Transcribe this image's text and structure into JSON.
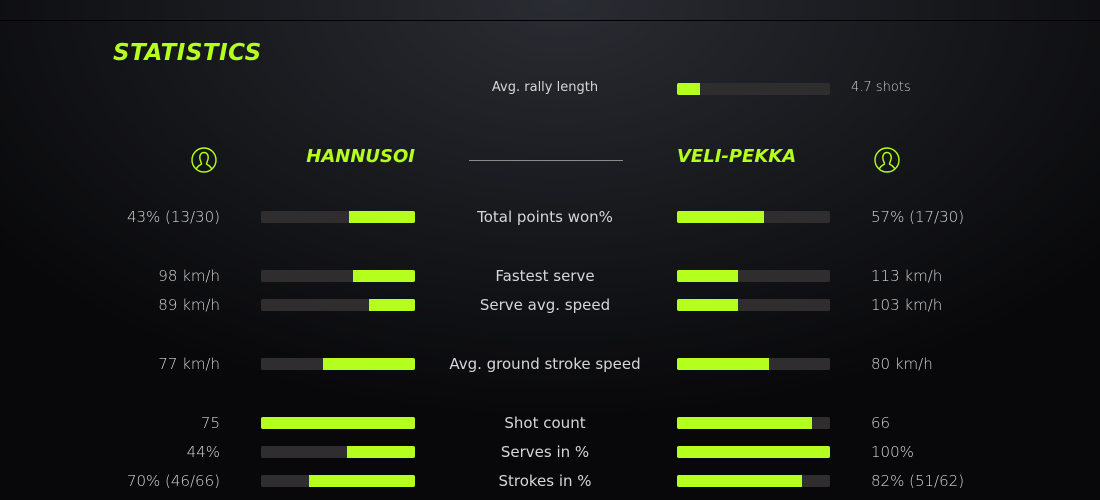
{
  "title": "STATISTICS",
  "accent_color": "#b4ff1e",
  "rally": {
    "label": "Avg. rally length",
    "value": "4.7 shots",
    "fraction": 0.15
  },
  "players": {
    "left": {
      "name": "HANNUSOI",
      "icon": "user-avatar-icon"
    },
    "right": {
      "name": "VELI-PEKKA",
      "icon": "user-avatar-icon"
    }
  },
  "stats": [
    {
      "label": "Total points won%",
      "left": "43% (13/30)",
      "right": "57% (17/30)",
      "left_fraction": 0.43,
      "right_fraction": 0.57
    },
    {
      "label": "Fastest serve",
      "left": "98 km/h",
      "right": "113 km/h",
      "left_fraction": 0.4,
      "right_fraction": 0.4
    },
    {
      "label": "Serve avg. speed",
      "left": "89 km/h",
      "right": "103 km/h",
      "left_fraction": 0.3,
      "right_fraction": 0.4
    },
    {
      "label": "Avg. ground stroke speed",
      "left": "77 km/h",
      "right": "80 km/h",
      "left_fraction": 0.6,
      "right_fraction": 0.6
    },
    {
      "label": "Shot count",
      "left": "75",
      "right": "66",
      "left_fraction": 1.0,
      "right_fraction": 0.88
    },
    {
      "label": "Serves in %",
      "left": "44%",
      "right": "100%",
      "left_fraction": 0.44,
      "right_fraction": 1.0
    },
    {
      "label": "Strokes in %",
      "left": "70% (46/66)",
      "right": "82% (51/62)",
      "left_fraction": 0.69,
      "right_fraction": 0.82
    }
  ]
}
